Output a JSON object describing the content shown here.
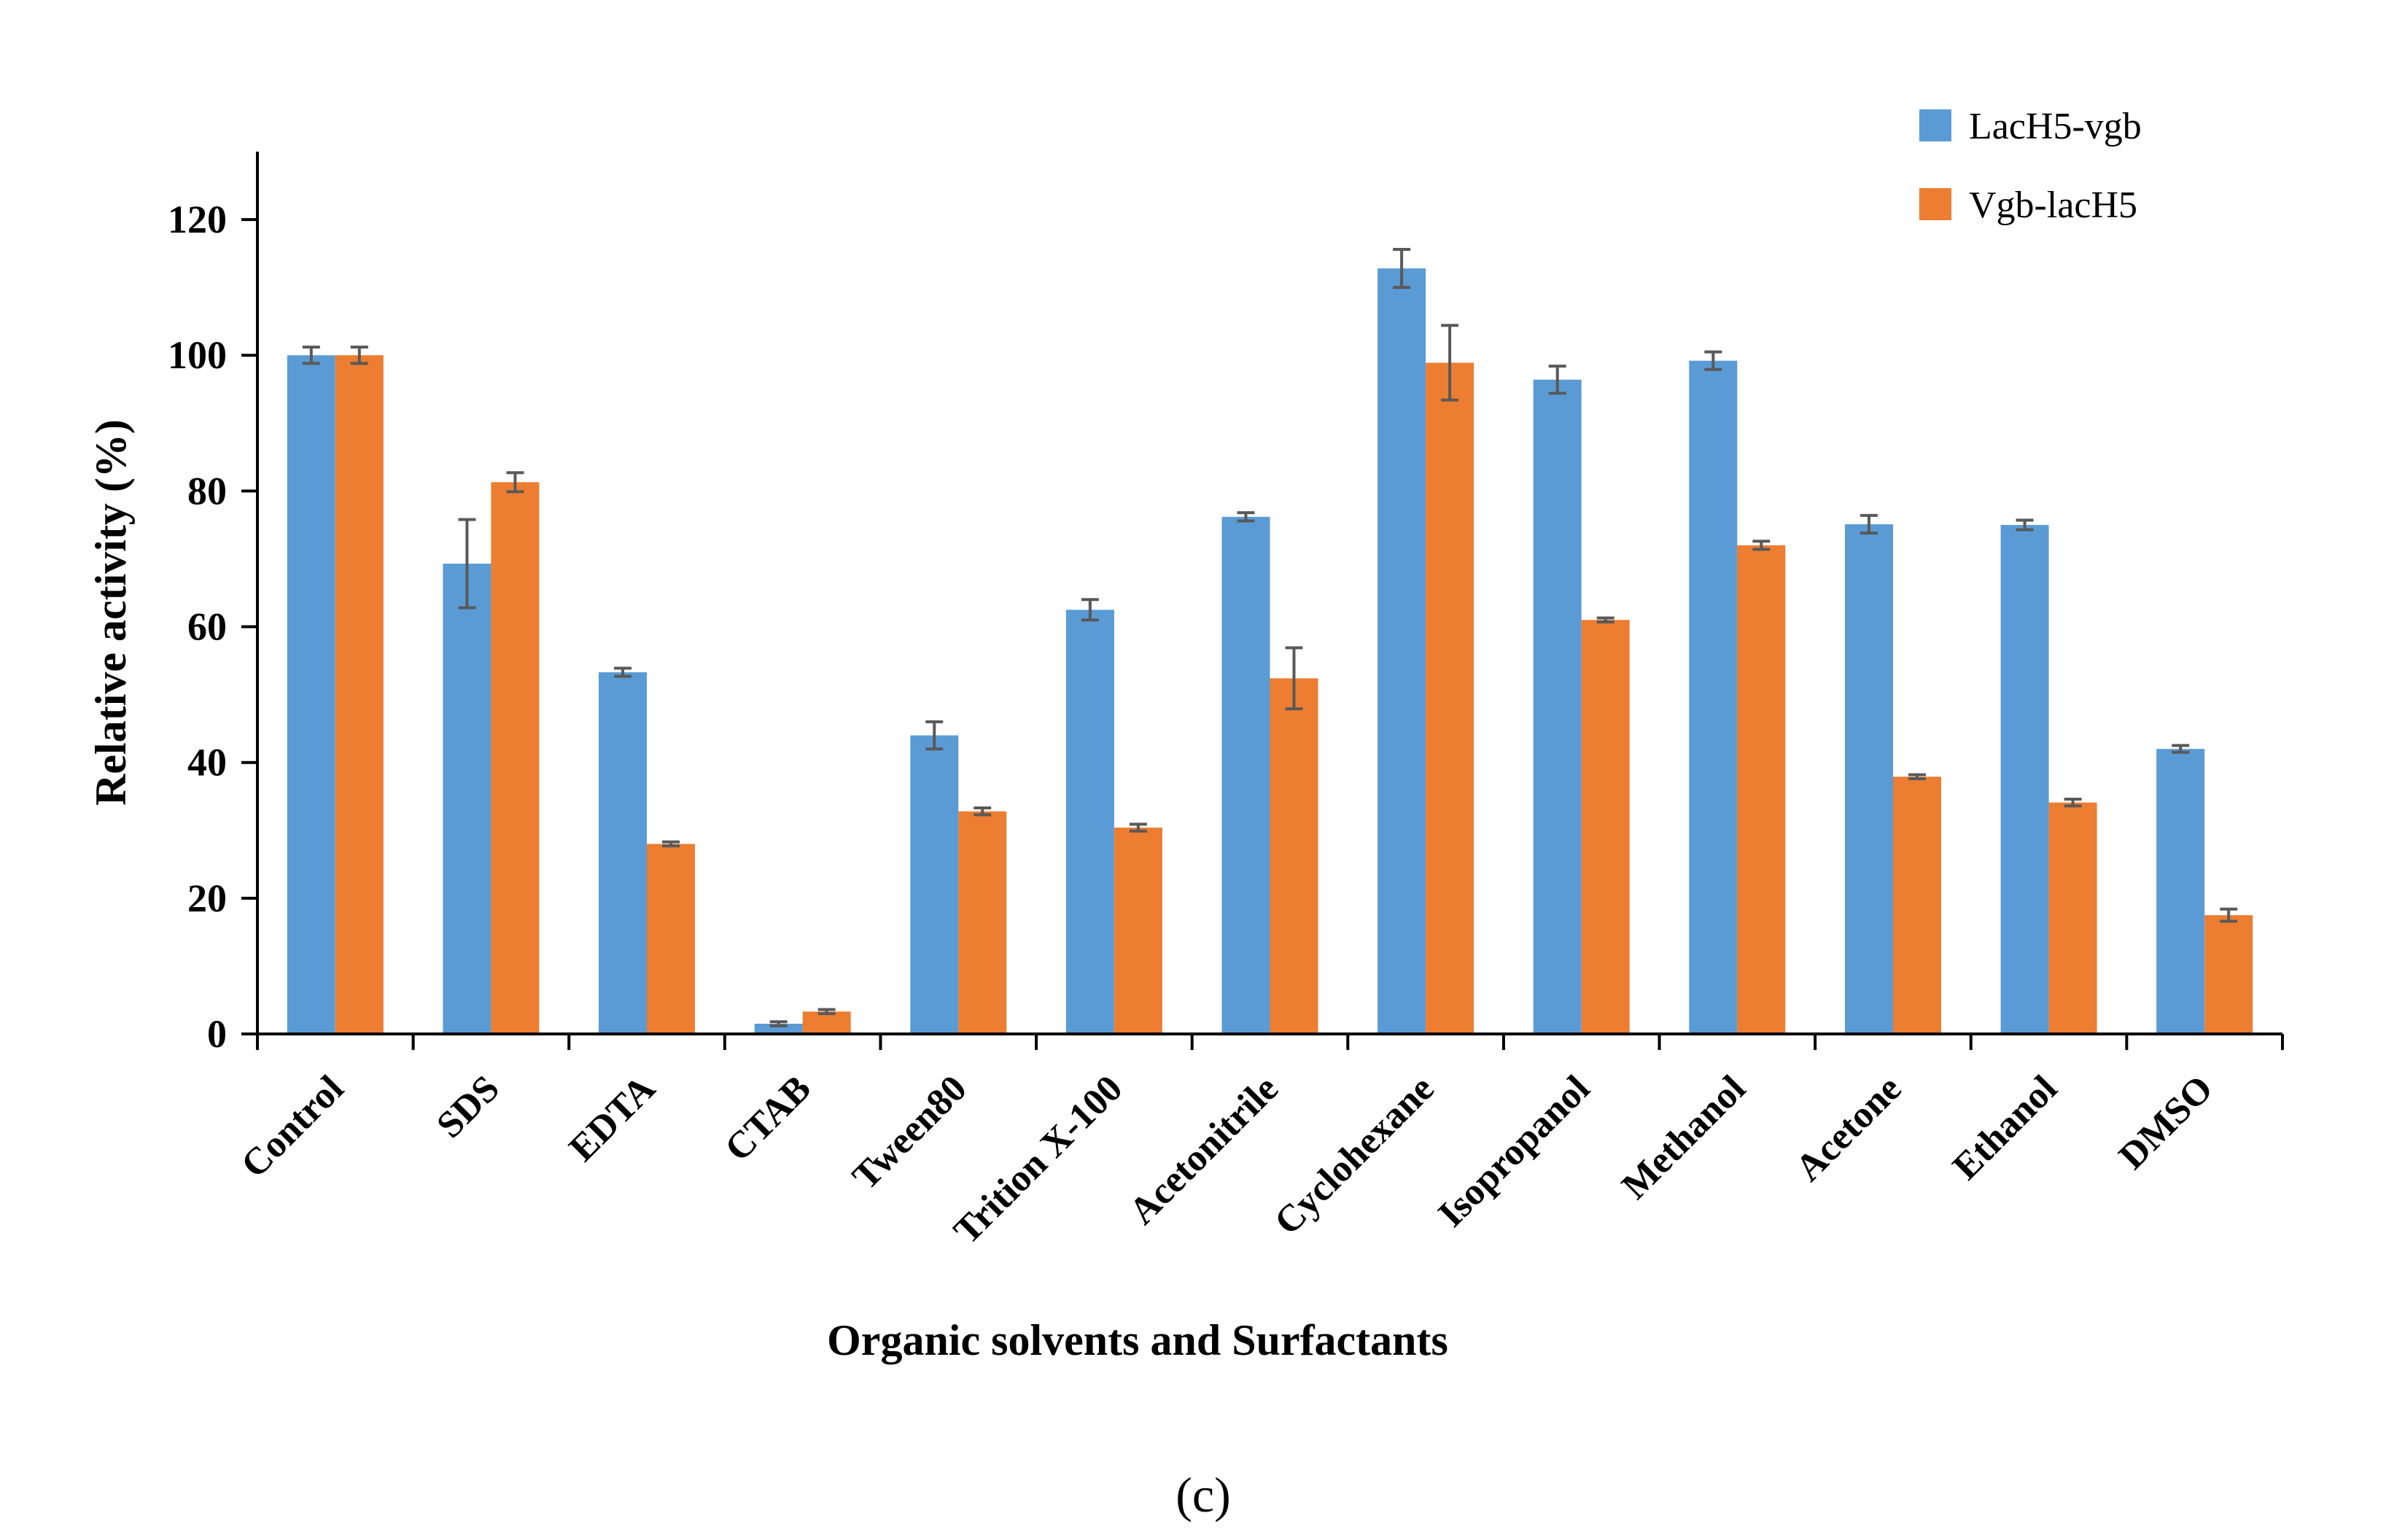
{
  "chart_data": {
    "type": "bar",
    "title": "",
    "xlabel": "Organic solvents and Surfactants",
    "ylabel": "Relative activity (%)",
    "ylim": [
      0,
      130
    ],
    "yticks": [
      0,
      20,
      40,
      60,
      80,
      100,
      120
    ],
    "ytick_labels": [
      "0",
      "20",
      "40",
      "60",
      "80",
      "100",
      "120"
    ],
    "grid": false,
    "legend_position": "top-right",
    "categories": [
      "Control",
      "SDS",
      "EDTA",
      "CTAB",
      "Tween80",
      "Trition X-100",
      "Acetonitrile",
      "Cyclohexane",
      "Isopropanol",
      "Methanol",
      "Acetone",
      "Ethanol",
      "DMSO"
    ],
    "series": [
      {
        "name": "LacH5-vgb",
        "color": "#5b9bd5",
        "values": [
          100,
          69.3,
          53.3,
          1.5,
          44,
          62.5,
          76.2,
          112.8,
          96.4,
          99.2,
          75.1,
          75,
          42
        ],
        "errors": [
          1.2,
          6.5,
          0.6,
          0.3,
          2,
          1.5,
          0.6,
          2.8,
          2,
          1.3,
          1.3,
          0.7,
          0.5
        ]
      },
      {
        "name": "Vgb-lacH5",
        "color": "#ed7d31",
        "values": [
          100,
          81.3,
          28,
          3.3,
          32.8,
          30.4,
          52.4,
          98.9,
          61,
          72,
          37.9,
          34.1,
          17.5
        ],
        "errors": [
          1.2,
          1.4,
          0.3,
          0.3,
          0.5,
          0.5,
          4.5,
          5.5,
          0.3,
          0.6,
          0.3,
          0.5,
          0.9
        ]
      }
    ]
  },
  "panel_label": "(c)"
}
